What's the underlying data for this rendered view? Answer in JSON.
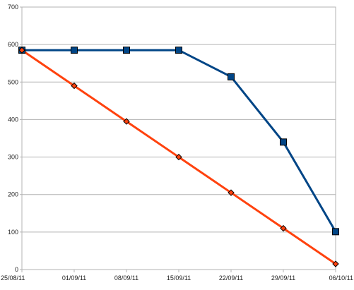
{
  "chart_data": {
    "type": "line",
    "x": [
      "25/08/11",
      "01/09/11",
      "08/09/11",
      "15/09/11",
      "22/09/11",
      "29/09/11",
      "06/10/11"
    ],
    "ylim": [
      0,
      700
    ],
    "y_ticks": [
      0,
      100,
      200,
      300,
      400,
      500,
      600,
      700
    ],
    "grid": true,
    "legend": "none",
    "series": [
      {
        "values": [
          585,
          585,
          585,
          585,
          514,
          340,
          101
        ],
        "color": "#004586",
        "marker": "square"
      },
      {
        "values": [
          585,
          490,
          395,
          300,
          205,
          110,
          15
        ],
        "color": "#ff420e",
        "marker": "diamond"
      }
    ],
    "x_tick_labels": [
      "25/08/11",
      "01/09/11",
      "08/09/11",
      "15/09/11",
      "22/09/11",
      "29/09/11",
      "06/10/11"
    ],
    "y_tick_labels": [
      "0",
      "100",
      "200",
      "300",
      "400",
      "500",
      "600",
      "700"
    ]
  }
}
